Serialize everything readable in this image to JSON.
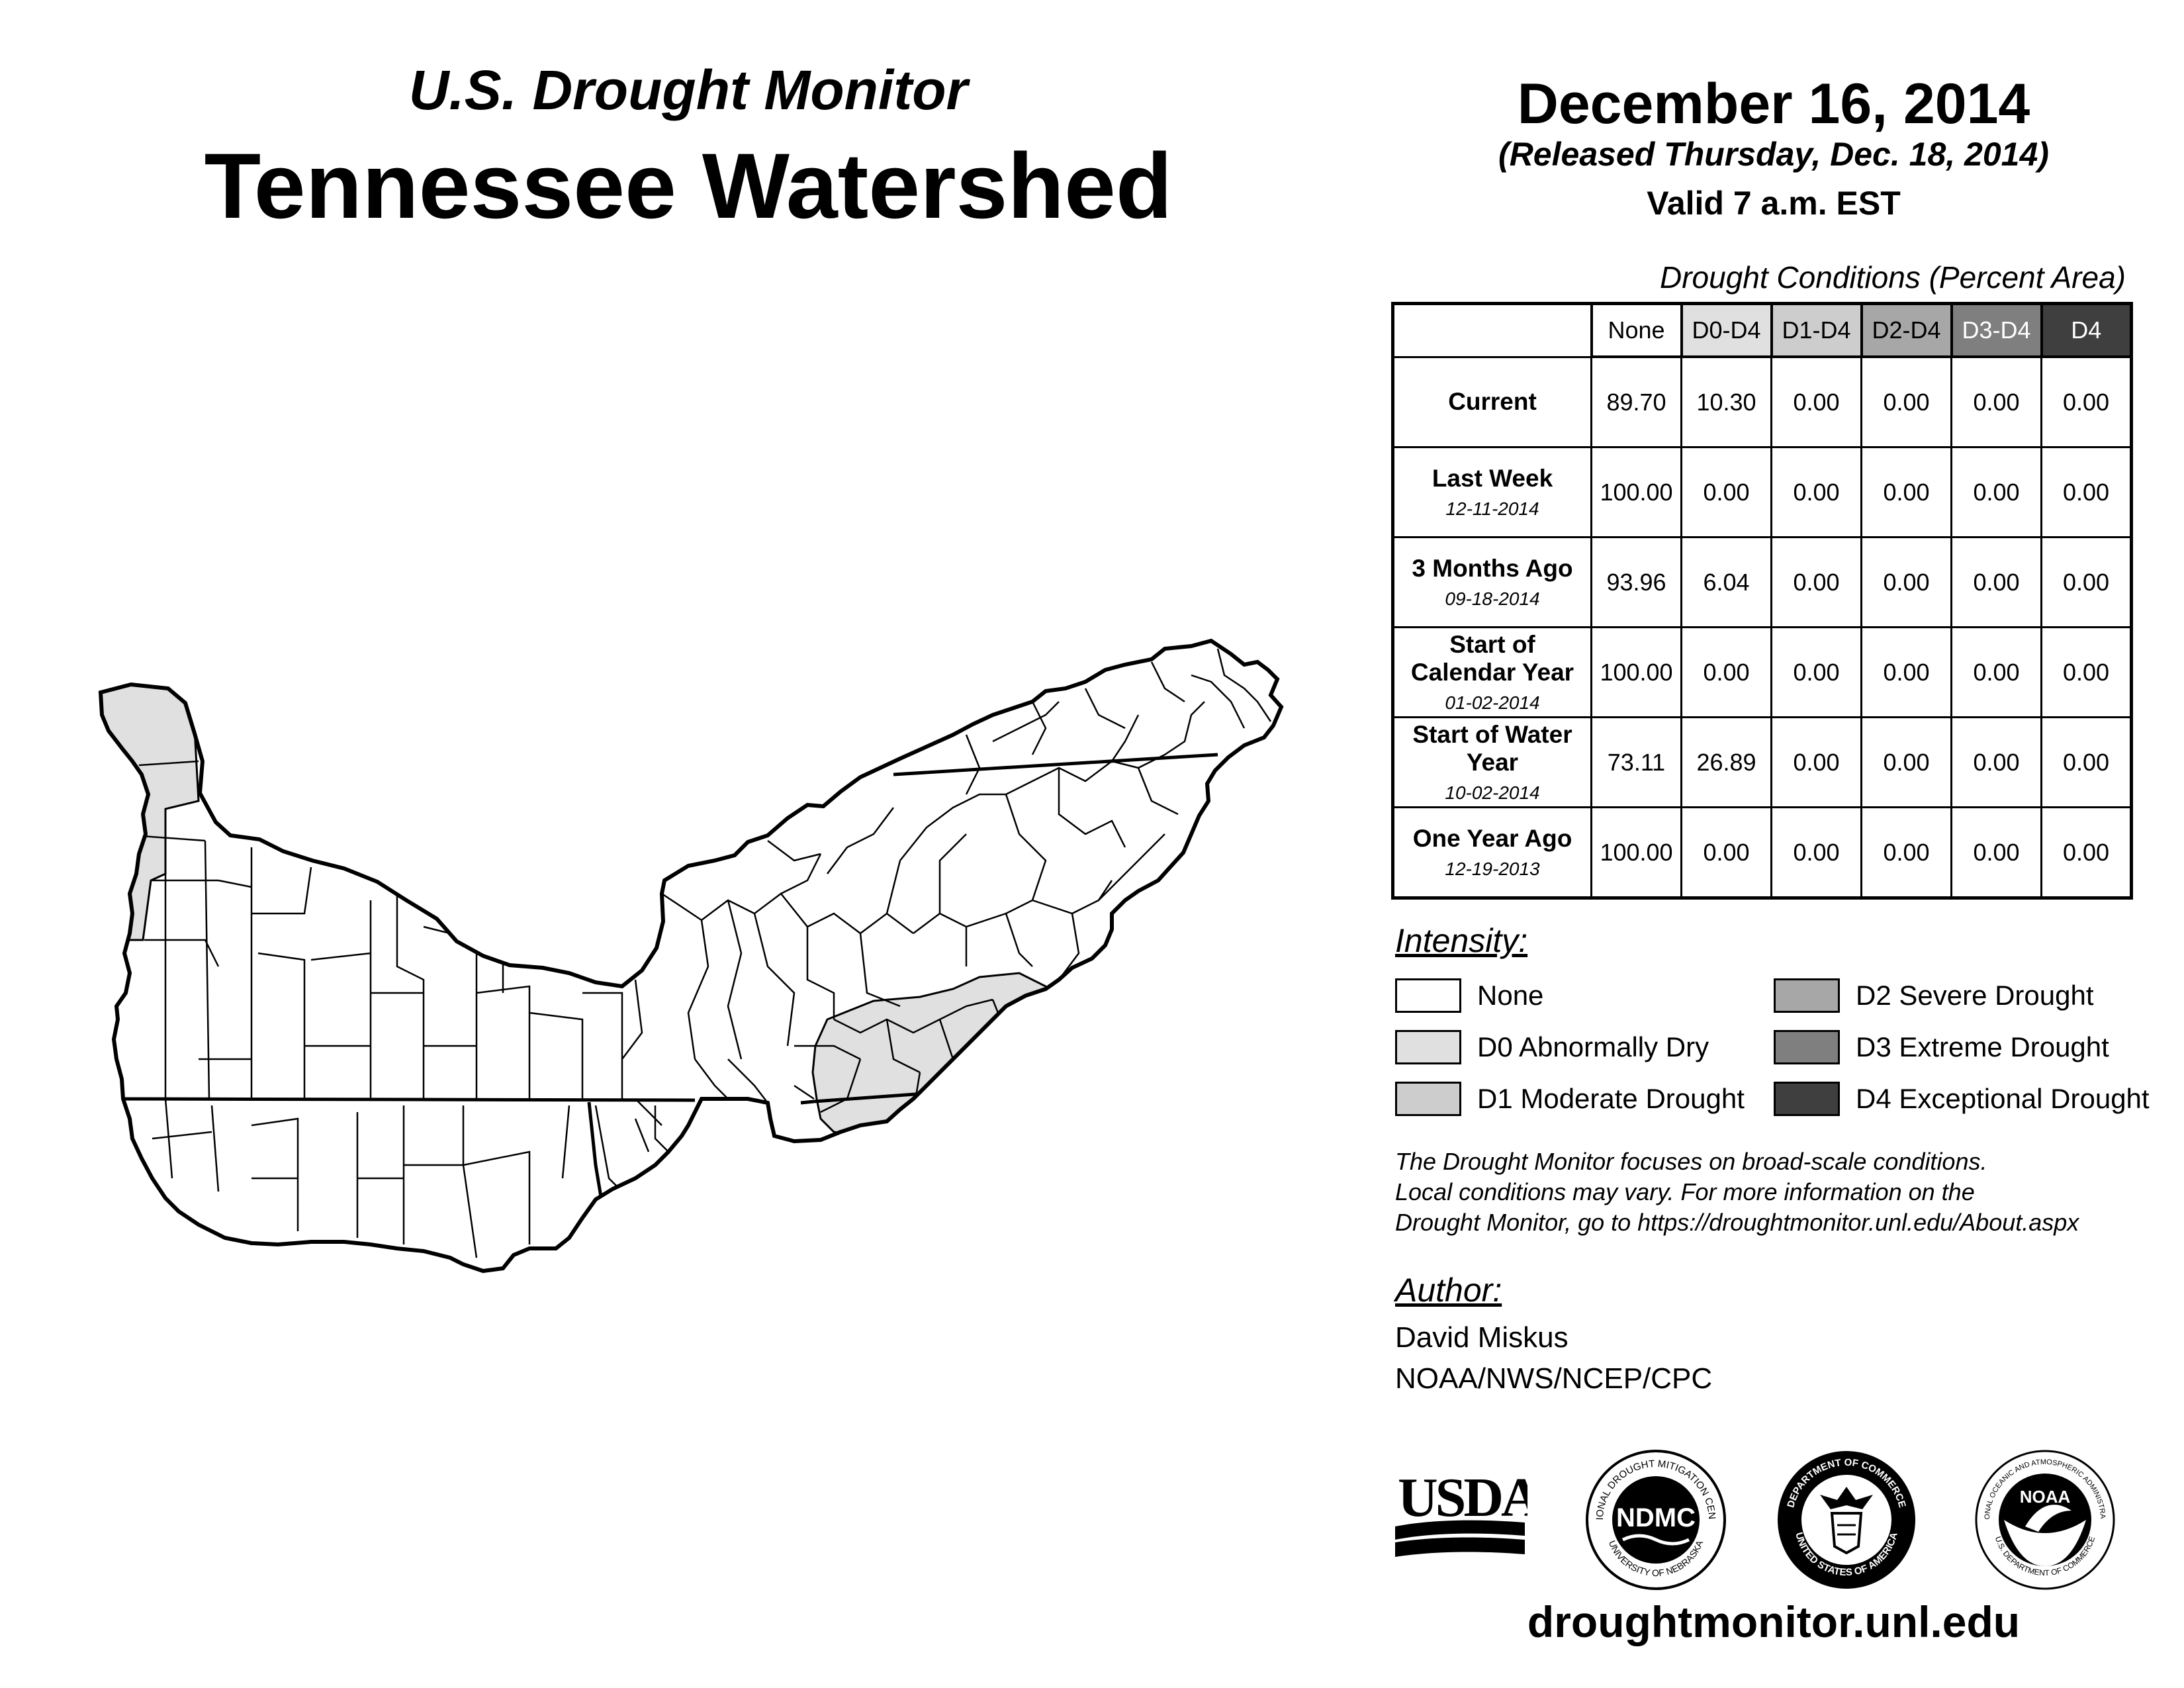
{
  "header": {
    "subtitle": "U.S. Drought Monitor",
    "title": "Tennessee Watershed",
    "date": "December 16, 2014",
    "released": "(Released Thursday, Dec. 18, 2014)",
    "valid": "Valid 7 a.m. EST"
  },
  "table": {
    "caption": "Drought Conditions (Percent Area)",
    "columns": [
      "None",
      "D0-D4",
      "D1-D4",
      "D2-D4",
      "D3-D4",
      "D4"
    ],
    "column_colors": [
      "#ffffff",
      "#e0e0e0",
      "#cdcdcd",
      "#a7a7a7",
      "#7f7f7f",
      "#3f3f3f"
    ],
    "rows": [
      {
        "label": "Current",
        "date": "",
        "values": [
          "89.70",
          "10.30",
          "0.00",
          "0.00",
          "0.00",
          "0.00"
        ]
      },
      {
        "label": "Last Week",
        "date": "12-11-2014",
        "values": [
          "100.00",
          "0.00",
          "0.00",
          "0.00",
          "0.00",
          "0.00"
        ]
      },
      {
        "label": "3 Months Ago",
        "date": "09-18-2014",
        "values": [
          "93.96",
          "6.04",
          "0.00",
          "0.00",
          "0.00",
          "0.00"
        ]
      },
      {
        "label": "Start of Calendar Year",
        "date": "01-02-2014",
        "values": [
          "100.00",
          "0.00",
          "0.00",
          "0.00",
          "0.00",
          "0.00"
        ]
      },
      {
        "label": "Start of Water Year",
        "date": "10-02-2014",
        "values": [
          "73.11",
          "26.89",
          "0.00",
          "0.00",
          "0.00",
          "0.00"
        ]
      },
      {
        "label": "One Year Ago",
        "date": "12-19-2013",
        "values": [
          "100.00",
          "0.00",
          "0.00",
          "0.00",
          "0.00",
          "0.00"
        ]
      }
    ]
  },
  "legend": {
    "title": "Intensity:",
    "items": [
      {
        "label": "None",
        "color": "#ffffff"
      },
      {
        "label": "D0 Abnormally Dry",
        "color": "#e0e0e0"
      },
      {
        "label": "D1 Moderate Drought",
        "color": "#cdcdcd"
      },
      {
        "label": "D2 Severe Drought",
        "color": "#a7a7a7"
      },
      {
        "label": "D3 Extreme Drought",
        "color": "#7f7f7f"
      },
      {
        "label": "D4 Exceptional Drought",
        "color": "#3f3f3f"
      }
    ]
  },
  "disclaimer": [
    "The Drought Monitor focuses on broad-scale conditions.",
    "Local conditions may vary. For more information on the",
    "Drought Monitor, go to https://droughtmonitor.unl.edu/About.aspx"
  ],
  "author": {
    "title": "Author:",
    "name": "David Miskus",
    "org": "NOAA/NWS/NCEP/CPC"
  },
  "logos": {
    "usda": "USDA",
    "ndmc": "NDMC",
    "ndmc_top": "NATIONAL DROUGHT MITIGATION CENTER",
    "ndmc_bottom": "UNIVERSITY OF NEBRASKA",
    "doc_top": "DEPARTMENT OF COMMERCE",
    "doc_bottom": "UNITED STATES OF AMERICA",
    "noaa": "NOAA",
    "noaa_top": "NATIONAL OCEANIC AND ATMOSPHERIC ADMINISTRATION",
    "noaa_bottom": "U.S. DEPARTMENT OF COMMERCE"
  },
  "footer": {
    "url": "droughtmonitor.unl.edu"
  },
  "map": {
    "region": "Tennessee Watershed",
    "fill_none": "#ffffff",
    "fill_d0": "#e0e0e0",
    "fill_d1": "#cdcdcd",
    "outline": "#000000"
  }
}
